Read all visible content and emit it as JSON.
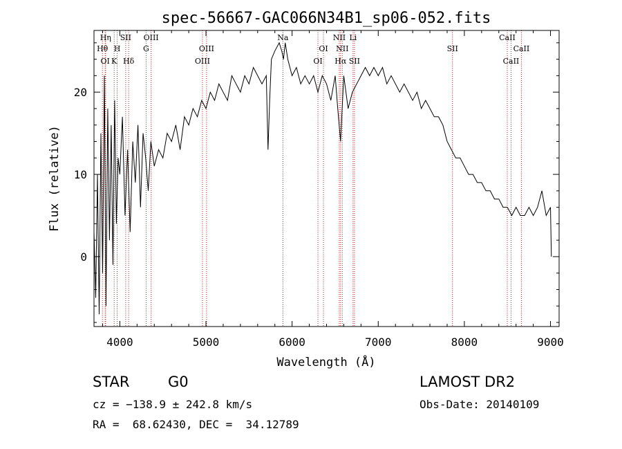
{
  "chart_data": {
    "type": "line",
    "title": "spec-56667-GAC066N34B1_sp06-052.fits",
    "xlabel": "Wavelength (Å)",
    "ylabel": "Flux (relative)",
    "xlim": [
      3700,
      9100
    ],
    "ylim": [
      -8.5,
      27.5
    ],
    "xticks": [
      4000,
      5000,
      6000,
      7000,
      8000,
      9000
    ],
    "yticks": [
      0,
      10,
      20
    ],
    "series": [
      {
        "x": [
          3700,
          3720,
          3740,
          3760,
          3780,
          3800,
          3820,
          3840,
          3860,
          3880,
          3900,
          3920,
          3940,
          3960,
          3980,
          4000,
          4030,
          4060,
          4090,
          4120,
          4150,
          4180,
          4210,
          4240,
          4270,
          4300,
          4330,
          4360,
          4400,
          4450,
          4500,
          4550,
          4600,
          4650,
          4700,
          4750,
          4800,
          4850,
          4900,
          4950,
          5000,
          5050,
          5100,
          5150,
          5200,
          5250,
          5300,
          5350,
          5400,
          5450,
          5500,
          5550,
          5600,
          5650,
          5700,
          5720,
          5740,
          5760,
          5800,
          5850,
          5880,
          5900,
          5920,
          5950,
          6000,
          6050,
          6100,
          6150,
          6200,
          6250,
          6300,
          6350,
          6400,
          6450,
          6500,
          6530,
          6563,
          6600,
          6650,
          6700,
          6750,
          6800,
          6850,
          6900,
          6950,
          7000,
          7050,
          7100,
          7150,
          7200,
          7250,
          7300,
          7350,
          7400,
          7450,
          7500,
          7550,
          7600,
          7650,
          7700,
          7750,
          7800,
          7850,
          7900,
          7950,
          8000,
          8050,
          8100,
          8150,
          8200,
          8250,
          8300,
          8350,
          8400,
          8450,
          8500,
          8550,
          8600,
          8650,
          8700,
          8750,
          8800,
          8850,
          8900,
          8950,
          9000,
          9010
        ],
        "y": [
          3,
          -5,
          10,
          -7,
          15,
          -2,
          22,
          -6,
          18,
          2,
          16,
          -1,
          19,
          4,
          12,
          10,
          17,
          5,
          13,
          3,
          14,
          9,
          16,
          6,
          15,
          12,
          8,
          14,
          11,
          13,
          12,
          15,
          14,
          16,
          13,
          17,
          16,
          18,
          17,
          19,
          18,
          20,
          19,
          21,
          20,
          19,
          22,
          21,
          20,
          22,
          21,
          23,
          22,
          21,
          22,
          13,
          19,
          24,
          25,
          26,
          25,
          24,
          26,
          24,
          22,
          23,
          21,
          22,
          21,
          22,
          20,
          22,
          21,
          19,
          22,
          18,
          14,
          22,
          18,
          20,
          21,
          22,
          23,
          22,
          23,
          22,
          23,
          21,
          22,
          21,
          20,
          21,
          20,
          19,
          20,
          18,
          19,
          18,
          17,
          17,
          16,
          14,
          13,
          12,
          12,
          11,
          10,
          10,
          9,
          9,
          8,
          8,
          7,
          7,
          6,
          6,
          5,
          6,
          5,
          5,
          6,
          5,
          6,
          8,
          5,
          6,
          0
        ]
      }
    ],
    "line_markers": [
      {
        "label": "OI",
        "wave": 3830
      },
      {
        "label": "Hθ",
        "wave": 3798
      },
      {
        "label": "Hη",
        "wave": 3835
      },
      {
        "label": "K",
        "wave": 3934
      },
      {
        "label": "H",
        "wave": 3969
      },
      {
        "label": "SII",
        "wave": 4068
      },
      {
        "label": "Hδ",
        "wave": 4102
      },
      {
        "label": "G",
        "wave": 4305
      },
      {
        "label": "OIII",
        "wave": 4363
      },
      {
        "label": "OIII",
        "wave": 4959
      },
      {
        "label": "OIII",
        "wave": 5007
      },
      {
        "label": "Na",
        "wave": 5893
      },
      {
        "label": "OI",
        "wave": 6300
      },
      {
        "label": "OI",
        "wave": 6364
      },
      {
        "label": "NII",
        "wave": 6548
      },
      {
        "label": "Hα",
        "wave": 6563
      },
      {
        "label": "NII",
        "wave": 6583
      },
      {
        "label": "Li",
        "wave": 6708
      },
      {
        "label": "SII",
        "wave": 6724
      },
      {
        "label": "SII",
        "wave": 7862
      },
      {
        "label": "CaII",
        "wave": 8498
      },
      {
        "label": "CaII",
        "wave": 8542
      },
      {
        "label": "CaII",
        "wave": 8662
      }
    ]
  },
  "info": {
    "class": "STAR",
    "subclass": "G0",
    "cz": "cz = −138.9 ± 242.8 km/s",
    "radec": "RA =  68.62430, DEC =  34.12789",
    "survey": "LAMOST DR2",
    "obsdate": "Obs-Date: 20140109"
  },
  "colors": {
    "marker": "#b22222",
    "line": "#000000"
  }
}
